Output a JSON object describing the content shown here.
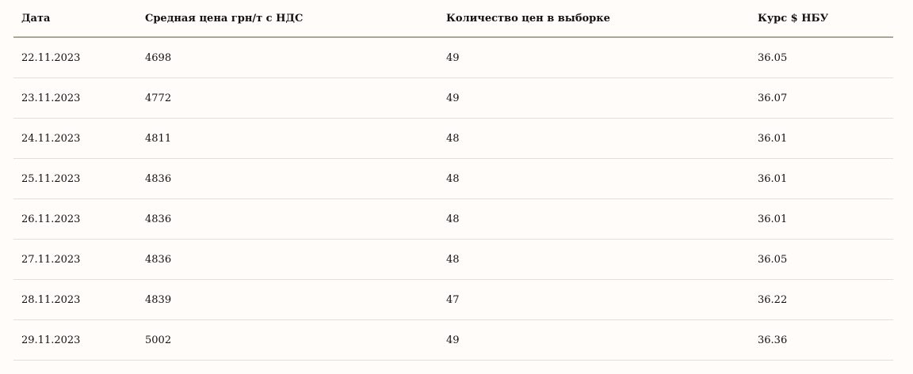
{
  "table": {
    "headers": [
      "Дата",
      "Средная цена грн/т с НДС",
      "Количество цен в выборке",
      "Курс $ НБУ"
    ],
    "rows": [
      [
        "22.11.2023",
        "4698",
        "49",
        "36.05"
      ],
      [
        "23.11.2023",
        "4772",
        "49",
        "36.07"
      ],
      [
        "24.11.2023",
        "4811",
        "48",
        "36.01"
      ],
      [
        "25.11.2023",
        "4836",
        "48",
        "36.01"
      ],
      [
        "26.11.2023",
        "4836",
        "48",
        "36.01"
      ],
      [
        "27.11.2023",
        "4836",
        "48",
        "36.05"
      ],
      [
        "28.11.2023",
        "4839",
        "47",
        "36.22"
      ],
      [
        "29.11.2023",
        "5002",
        "49",
        "36.36"
      ]
    ]
  }
}
